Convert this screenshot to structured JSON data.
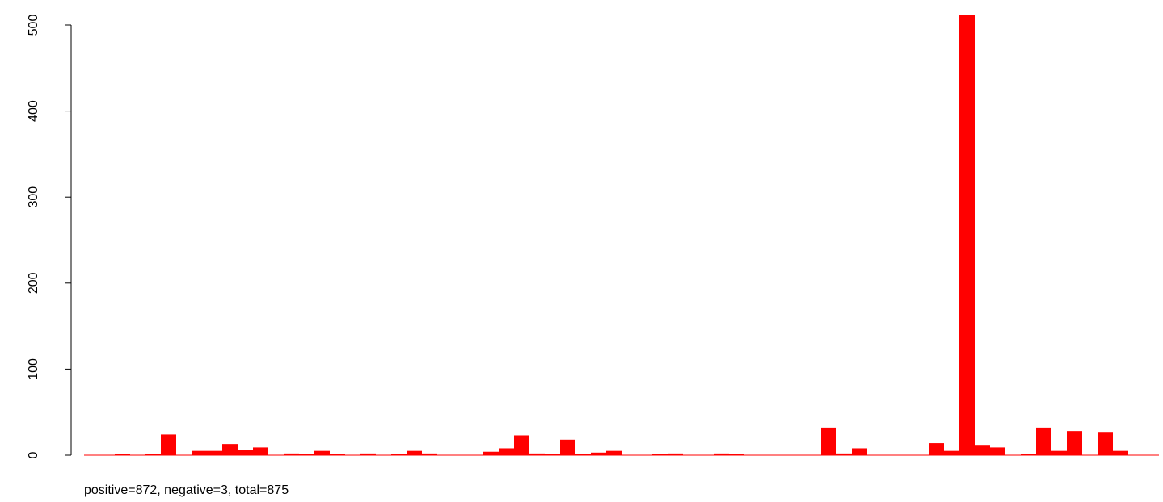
{
  "chart_data": {
    "type": "bar",
    "caption": "positive=872, negative=3, total=875",
    "values": [
      0,
      0,
      1,
      0,
      1,
      24,
      0,
      5,
      5,
      13,
      6,
      9,
      0,
      2,
      1,
      5,
      1,
      0,
      2,
      0,
      1,
      5,
      2,
      0,
      0,
      0,
      4,
      8,
      23,
      2,
      1,
      18,
      1,
      3,
      5,
      0,
      0,
      1,
      2,
      0,
      0,
      2,
      1,
      0,
      0,
      0,
      0,
      0,
      32,
      2,
      8,
      0,
      0,
      0,
      0,
      14,
      5,
      512,
      12,
      9,
      0,
      1,
      32,
      5,
      28,
      0,
      27,
      5,
      0,
      0
    ],
    "color": "#ff0000",
    "ylim": [
      0,
      520
    ],
    "yticks": [
      0,
      100,
      200,
      300,
      400,
      500
    ]
  }
}
